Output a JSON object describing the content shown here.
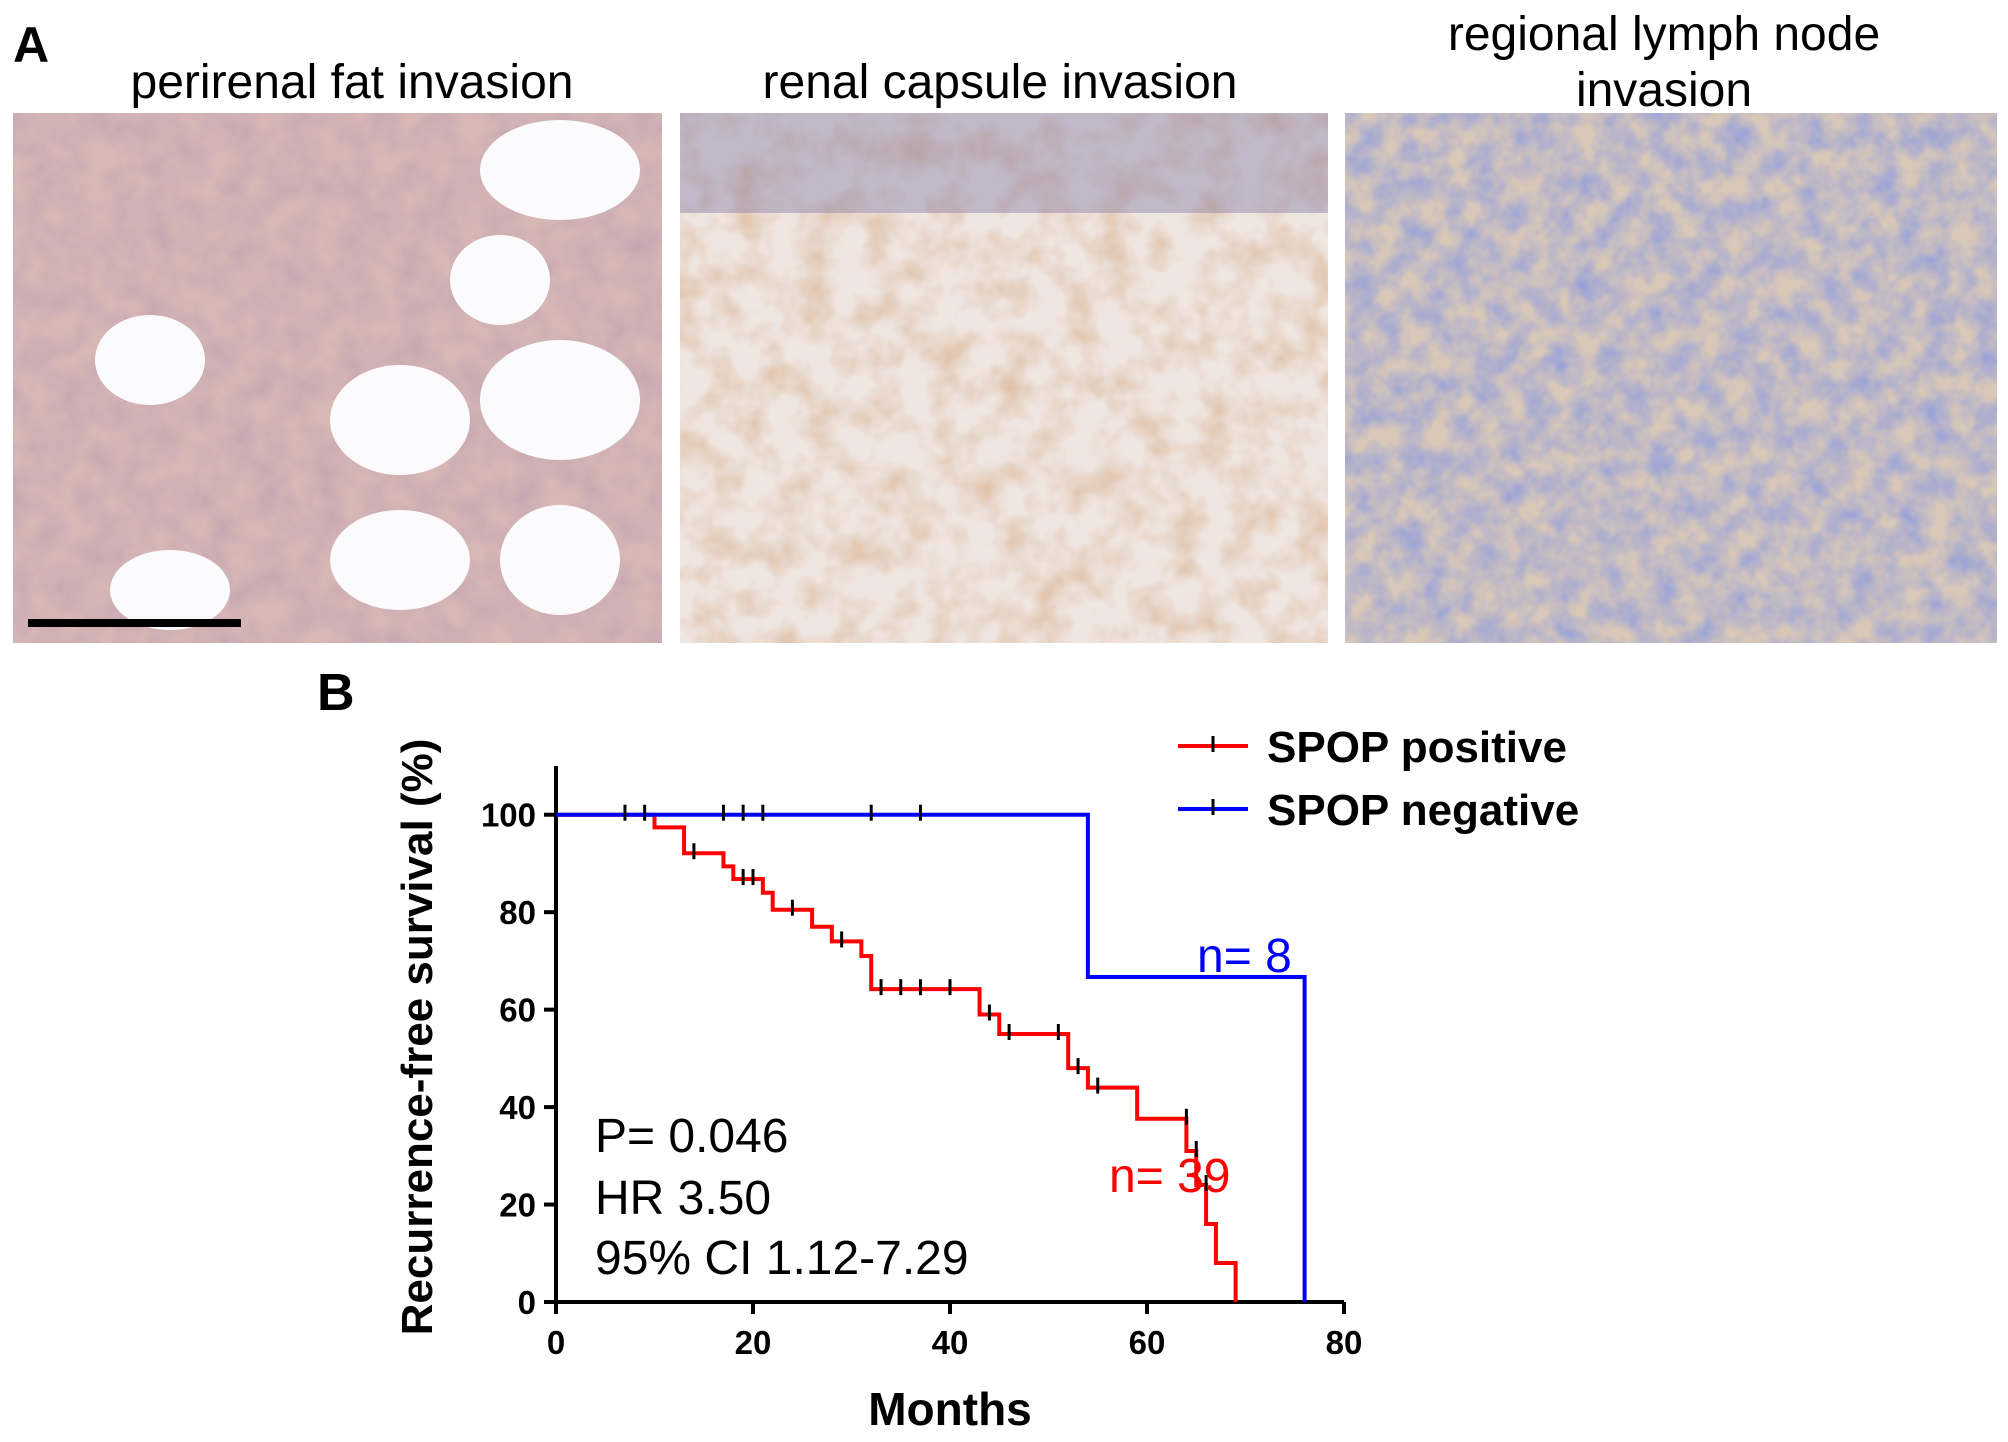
{
  "panel_a": {
    "label": "A",
    "images": [
      {
        "title": "perirenal fat invasion"
      },
      {
        "title": "renal capsule invasion"
      },
      {
        "title_lines": [
          "regional lymph node",
          "invasion"
        ]
      }
    ]
  },
  "chart_data": {
    "type": "survival",
    "panel_label": "B",
    "xlabel": "Months",
    "ylabel": "Recurrence-free survival (%)",
    "xlim": [
      0,
      80
    ],
    "ylim": [
      0,
      110
    ],
    "xticks": [
      0,
      20,
      40,
      60,
      80
    ],
    "yticks": [
      0,
      20,
      40,
      60,
      80,
      100
    ],
    "legend": "upper right",
    "series": [
      {
        "name": "SPOP positive",
        "color": "#ff0000",
        "x": [
          0,
          10,
          13,
          17,
          18,
          21,
          22,
          26,
          28,
          31,
          32,
          43,
          45,
          52,
          54,
          59,
          64,
          65,
          66,
          67,
          69
        ],
        "values": [
          100,
          97.4,
          92.1,
          89.4,
          86.8,
          84,
          80.5,
          77,
          74,
          71,
          64.2,
          59,
          55,
          48,
          44,
          37.6,
          31,
          24,
          16,
          8,
          0
        ],
        "censored": {
          "x": [
            14,
            19,
            20,
            24,
            29,
            33,
            35,
            37,
            40,
            44,
            46,
            51,
            53,
            55,
            64,
            65,
            66
          ],
          "values": [
            92.1,
            86.8,
            86.8,
            80.5,
            74,
            64.2,
            64.2,
            64.2,
            64.2,
            59,
            55,
            55,
            48,
            44,
            37.6,
            31,
            24
          ]
        },
        "annotation": "n= 39"
      },
      {
        "name": "SPOP negative",
        "color": "#0000ff",
        "x": [
          0,
          54,
          76
        ],
        "values": [
          100,
          66.7,
          0
        ],
        "censored": {
          "x": [
            7,
            9,
            17,
            19,
            21,
            32,
            37
          ],
          "values": [
            100,
            100,
            100,
            100,
            100,
            100,
            100
          ]
        },
        "annotation": "n= 8"
      }
    ],
    "stats": [
      "P= 0.046",
      "HR 3.50",
      "95% CI 1.12-7.29"
    ]
  }
}
